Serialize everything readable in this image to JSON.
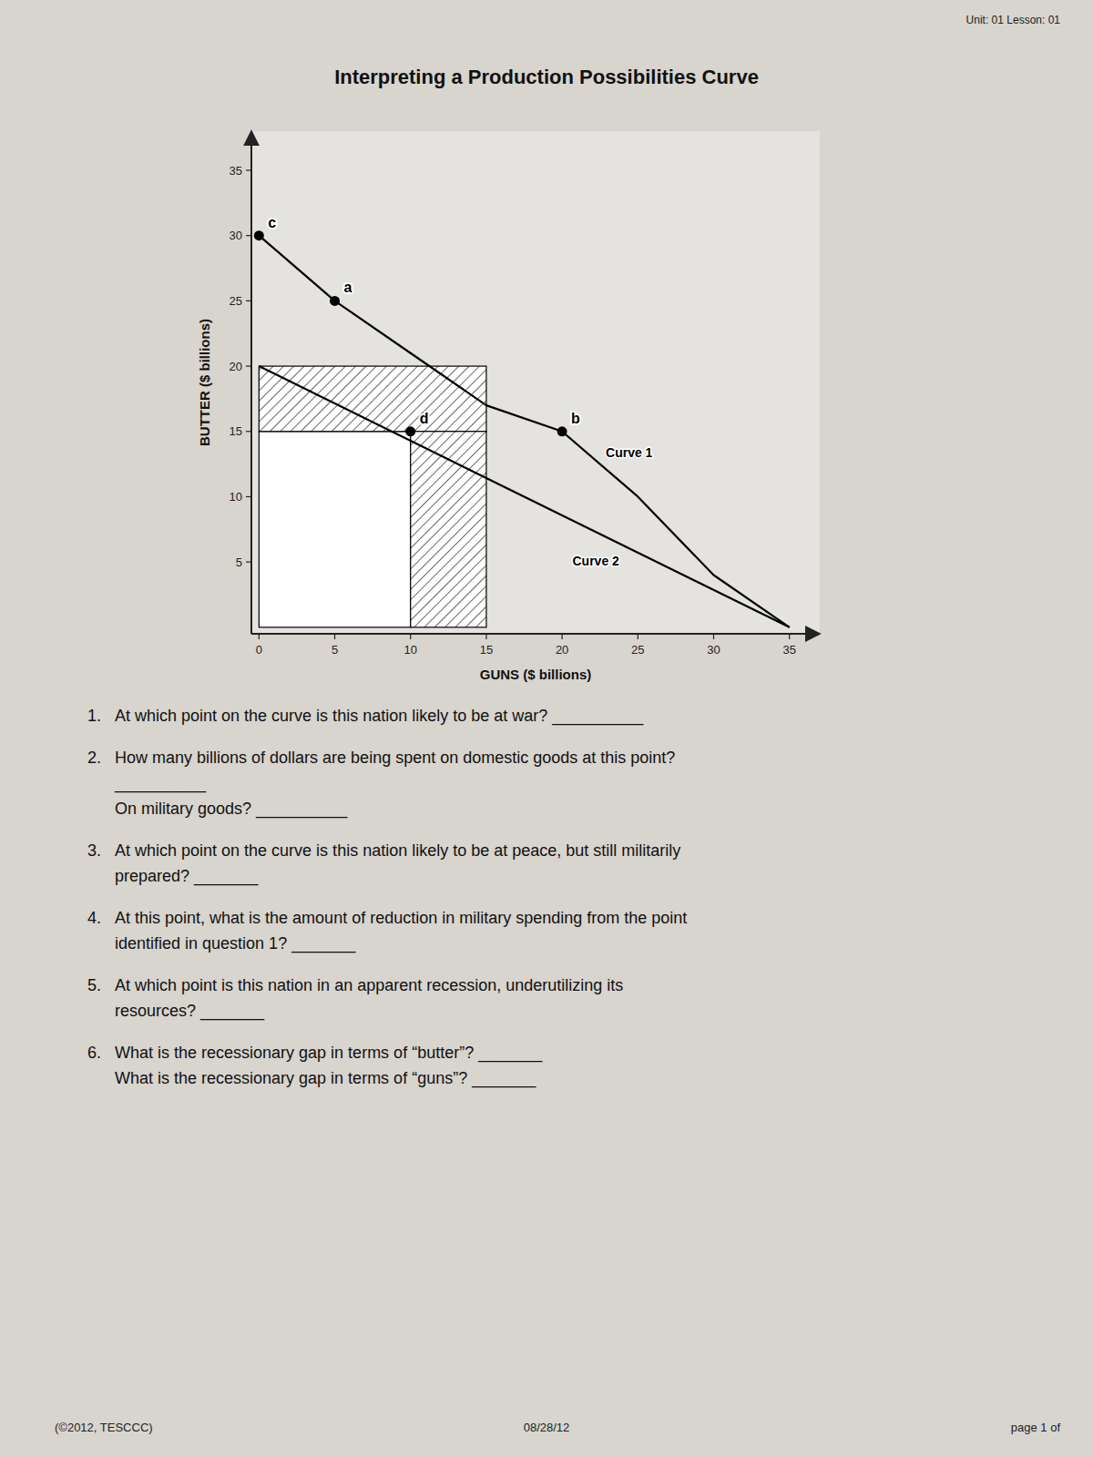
{
  "paper_color": "#d8d4ce",
  "header": "Unit: 01 Lesson: 01",
  "footer": {
    "left": "(©2012, TESCCC)",
    "center": "08/28/12",
    "right": "page 1 of"
  },
  "questions": [
    {
      "number": "1.",
      "lines": [
        "At which point on the curve is this nation likely to be at war? __________"
      ]
    },
    {
      "number": "2.",
      "lines": [
        "How many billions of dollars are being spent on domestic goods at this point?",
        "__________",
        "On military goods? __________"
      ]
    },
    {
      "number": "3.",
      "lines": [
        "At which point on the curve is this nation likely to be at peace, but still militarily",
        "prepared? _______"
      ]
    },
    {
      "number": "4.",
      "lines": [
        "At this point, what is the amount of reduction in military spending from the point",
        "identified in question 1? _______"
      ]
    },
    {
      "number": "5.",
      "lines": [
        "At which point is this nation in an apparent recession, underutilizing its",
        "resources? _______"
      ]
    },
    {
      "number": "6.",
      "lines": [
        "What is the recessionary gap in terms of “butter”? _______",
        "What is the recessionary gap in terms of “guns”? _______"
      ]
    }
  ],
  "chart_data": {
    "type": "line",
    "title": "Interpreting a Production Possibilities Curve",
    "xlabel": "GUNS ($ billions)",
    "ylabel": "BUTTER ($ billions)",
    "xlim": [
      -0.5,
      37
    ],
    "ylim": [
      -0.5,
      38
    ],
    "xticks": [
      0,
      5,
      10,
      15,
      20,
      25,
      30,
      35
    ],
    "yticks": [
      5,
      10,
      15,
      20,
      25,
      30,
      35
    ],
    "grid": false,
    "series": [
      {
        "name": "Curve 1",
        "color": "#000000",
        "x": [
          0,
          5,
          10,
          15,
          20,
          25,
          30,
          35
        ],
        "values": [
          30,
          25,
          21,
          17,
          15,
          10,
          4,
          0
        ]
      },
      {
        "name": "Curve 2",
        "color": "#000000",
        "x": [
          0,
          35
        ],
        "values": [
          20,
          0
        ]
      }
    ],
    "points": [
      {
        "label": "c",
        "x": 0,
        "y": 30
      },
      {
        "label": "a",
        "x": 5,
        "y": 25
      },
      {
        "label": "b",
        "x": 20,
        "y": 15
      },
      {
        "label": "d",
        "x": 10,
        "y": 15
      }
    ],
    "regions": [
      {
        "x": [
          0,
          10
        ],
        "y": [
          0,
          15
        ],
        "hatched": false,
        "color": "#000000"
      },
      {
        "x": [
          0,
          15
        ],
        "y": [
          15,
          20
        ],
        "hatched": true,
        "color": "#000000"
      },
      {
        "x": [
          10,
          15
        ],
        "y": [
          0,
          15
        ],
        "hatched": true,
        "color": "#000000"
      }
    ]
  }
}
